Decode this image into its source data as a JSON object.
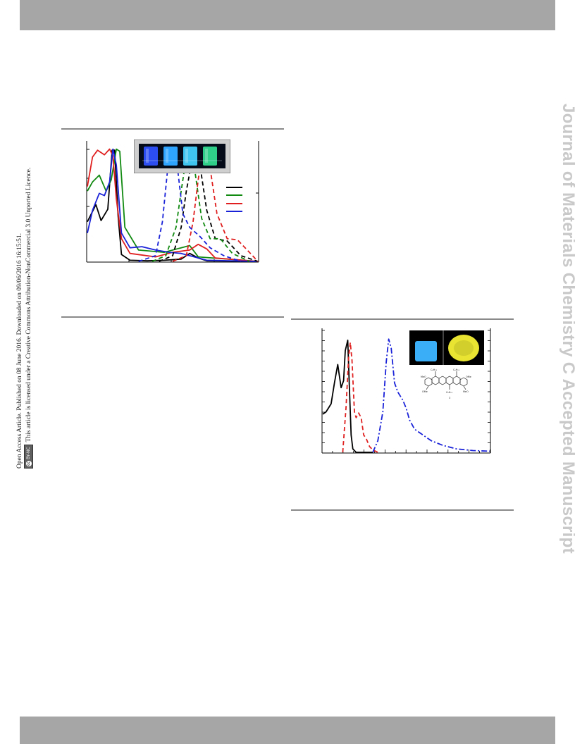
{
  "header_bar": {
    "color": "#a6a6a6"
  },
  "footer_bar": {
    "color": "#a6a6a6"
  },
  "license": {
    "line1": "Open Access Article. Published on 08 June 2016. Downloaded on 09/06/2016 16:15:51.",
    "line2": "This article is licensed under a Creative Commons Attribution-NonCommercial 3.0 Unported Licence.",
    "badge_cc": "cc",
    "badge_text": "BY-NC"
  },
  "watermark": {
    "text": "Journal of Materials Chemistry C Accepted Manuscript"
  },
  "figure1": {
    "chart_data": {
      "type": "line",
      "title": "",
      "xlabel": "",
      "ylabel": "",
      "xlim": [
        0,
        1
      ],
      "ylim": [
        0,
        1
      ],
      "grid": false,
      "legend_position": "right",
      "colors": {
        "black": "#000000",
        "green": "#118a11",
        "red": "#e02020",
        "blue": "#1a22d8"
      },
      "series": [
        {
          "color": "#000000",
          "style": "solid",
          "x": [
            0.0,
            0.05,
            0.08,
            0.12,
            0.145,
            0.16,
            0.18,
            0.2,
            0.25,
            0.35,
            0.45,
            0.55,
            0.6,
            0.65,
            0.7,
            1.0
          ],
          "y": [
            0.35,
            0.5,
            0.36,
            0.46,
            0.98,
            0.98,
            0.4,
            0.06,
            0.01,
            0.005,
            0.01,
            0.02,
            0.07,
            0.03,
            0.005,
            0.0
          ]
        },
        {
          "color": "#118a11",
          "style": "solid",
          "x": [
            0.0,
            0.03,
            0.07,
            0.11,
            0.14,
            0.17,
            0.19,
            0.22,
            0.3,
            0.45,
            0.55,
            0.6,
            0.65,
            1.0
          ],
          "y": [
            0.62,
            0.7,
            0.76,
            0.62,
            0.72,
            0.99,
            0.97,
            0.3,
            0.1,
            0.08,
            0.12,
            0.14,
            0.04,
            0.0
          ]
        },
        {
          "color": "#e02020",
          "style": "solid",
          "x": [
            0.0,
            0.03,
            0.06,
            0.1,
            0.13,
            0.15,
            0.17,
            0.2,
            0.25,
            0.4,
            0.5,
            0.6,
            0.65,
            0.7,
            0.75,
            1.0
          ],
          "y": [
            0.66,
            0.92,
            0.98,
            0.94,
            0.99,
            0.93,
            0.55,
            0.2,
            0.07,
            0.04,
            0.08,
            0.1,
            0.15,
            0.11,
            0.03,
            0.0
          ]
        },
        {
          "color": "#1a22d8",
          "style": "solid",
          "x": [
            0.0,
            0.03,
            0.07,
            0.1,
            0.13,
            0.15,
            0.17,
            0.2,
            0.25,
            0.32,
            0.4,
            0.48,
            0.55,
            0.6,
            0.7,
            1.0
          ],
          "y": [
            0.25,
            0.45,
            0.6,
            0.58,
            0.7,
            0.99,
            0.85,
            0.25,
            0.12,
            0.13,
            0.1,
            0.08,
            0.07,
            0.05,
            0.01,
            0.0
          ]
        },
        {
          "color": "#000000",
          "style": "dashed",
          "x": [
            0.42,
            0.5,
            0.55,
            0.58,
            0.61,
            0.63,
            0.66,
            0.7,
            0.75,
            0.82,
            0.9,
            1.0
          ],
          "y": [
            0.0,
            0.05,
            0.3,
            0.62,
            0.86,
            0.98,
            0.85,
            0.45,
            0.2,
            0.18,
            0.05,
            0.0
          ]
        },
        {
          "color": "#118a11",
          "style": "dashed",
          "x": [
            0.38,
            0.46,
            0.52,
            0.55,
            0.58,
            0.6,
            0.63,
            0.67,
            0.72,
            0.78,
            0.85,
            0.95
          ],
          "y": [
            0.0,
            0.05,
            0.3,
            0.62,
            0.92,
            0.98,
            0.8,
            0.38,
            0.2,
            0.2,
            0.07,
            0.0
          ]
        },
        {
          "color": "#e02020",
          "style": "dashed",
          "x": [
            0.5,
            0.58,
            0.62,
            0.65,
            0.67,
            0.69,
            0.72,
            0.76,
            0.82,
            0.88,
            0.95,
            1.0
          ],
          "y": [
            0.0,
            0.05,
            0.35,
            0.72,
            0.93,
            0.98,
            0.82,
            0.42,
            0.2,
            0.19,
            0.08,
            0.0
          ]
        },
        {
          "color": "#1a22d8",
          "style": "dashed",
          "x": [
            0.3,
            0.4,
            0.44,
            0.47,
            0.49,
            0.51,
            0.53,
            0.56,
            0.6,
            0.66,
            0.72,
            0.8,
            0.9
          ],
          "y": [
            0.0,
            0.05,
            0.35,
            0.8,
            0.95,
            0.98,
            0.8,
            0.42,
            0.3,
            0.22,
            0.12,
            0.05,
            0.0
          ]
        }
      ]
    },
    "photo": {
      "vial_colors": [
        "#2c4ef0",
        "#2fa4ff",
        "#3ec4ef",
        "#2fcf8a"
      ]
    }
  },
  "figure2": {
    "chart_data": {
      "type": "line",
      "title": "",
      "xlabel": "",
      "ylabel": "",
      "xlim": [
        0,
        1
      ],
      "ylim": [
        0,
        1
      ],
      "grid": false,
      "colors": {
        "black": "#000000",
        "red": "#e02020",
        "blue": "#1a22d8"
      },
      "series": [
        {
          "color": "#000000",
          "style": "solid",
          "x": [
            0.0,
            0.02,
            0.05,
            0.07,
            0.09,
            0.11,
            0.125,
            0.135,
            0.15,
            0.16,
            0.17,
            0.18,
            0.2,
            0.22,
            0.3
          ],
          "y": [
            0.33,
            0.35,
            0.42,
            0.6,
            0.76,
            0.56,
            0.62,
            0.88,
            0.97,
            0.55,
            0.15,
            0.03,
            0.0,
            0.0,
            0.0
          ]
        },
        {
          "color": "#e02020",
          "style": "dashed",
          "x": [
            0.12,
            0.14,
            0.155,
            0.165,
            0.175,
            0.19,
            0.2,
            0.215,
            0.23,
            0.245,
            0.26,
            0.28,
            0.3,
            0.33
          ],
          "y": [
            0.0,
            0.4,
            0.82,
            0.95,
            0.8,
            0.35,
            0.3,
            0.34,
            0.3,
            0.15,
            0.12,
            0.05,
            0.02,
            0.0
          ]
        },
        {
          "color": "#1a22d8",
          "style": "dashdot",
          "x": [
            0.3,
            0.33,
            0.36,
            0.38,
            0.395,
            0.41,
            0.43,
            0.45,
            0.48,
            0.5,
            0.52,
            0.55,
            0.6,
            0.65,
            0.72,
            0.8,
            0.9,
            1.0
          ],
          "y": [
            0.0,
            0.1,
            0.35,
            0.78,
            0.98,
            0.9,
            0.6,
            0.52,
            0.45,
            0.38,
            0.28,
            0.2,
            0.15,
            0.1,
            0.06,
            0.03,
            0.015,
            0.01
          ]
        }
      ]
    },
    "photo": {
      "left_color": "#3aaef7",
      "right_color": "#e8e431"
    }
  }
}
